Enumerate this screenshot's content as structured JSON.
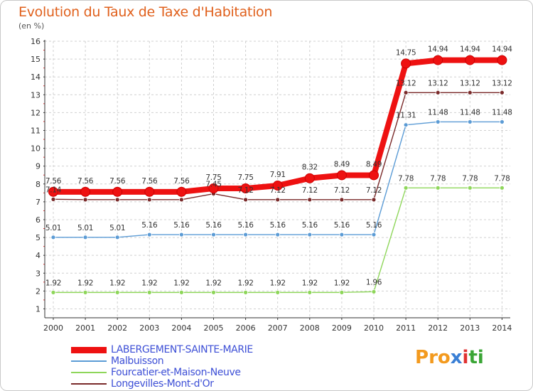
{
  "header": {
    "title": "Evolution du Taux de Taxe d'Habitation",
    "unit": "(en %)"
  },
  "logo": {
    "text": [
      "P",
      "r",
      "o",
      "x",
      "i",
      "t",
      "i"
    ],
    "colors": [
      "#f39a1e",
      "#f39a1e",
      "#f39a1e",
      "#3a7fd5",
      "#e03030",
      "#3aa535",
      "#3aa535"
    ]
  },
  "chart_data": {
    "type": "line",
    "title": "Evolution du Taux de Taxe d'Habitation",
    "ylabel": "(en %)",
    "xlabel": "",
    "x": [
      "2000",
      "2001",
      "2002",
      "2003",
      "2004",
      "2005",
      "2006",
      "2007",
      "2008",
      "2009",
      "2010",
      "2011",
      "2012",
      "2013",
      "2014"
    ],
    "ylim": [
      1,
      16
    ],
    "yticks": [
      1,
      2,
      3,
      4,
      5,
      6,
      7,
      8,
      9,
      10,
      11,
      12,
      13,
      14,
      15,
      16
    ],
    "grid": "horizontal dashed",
    "legend": "bottom-left",
    "series": [
      {
        "name": "LABERGEMENT-SAINTE-MARIE",
        "color": "#ee1111",
        "values": [
          7.56,
          7.56,
          7.56,
          7.56,
          7.56,
          7.75,
          7.75,
          7.91,
          8.32,
          8.49,
          8.49,
          14.75,
          14.94,
          14.94,
          14.94
        ],
        "labels": [
          "7.56",
          "7.56",
          "7.56",
          "7.56",
          "7.56",
          "7.75",
          "7.75",
          "7.91",
          "8.32",
          "8.49",
          "8.49",
          "14.75",
          "14.94",
          "14.94",
          "14.94"
        ]
      },
      {
        "name": "Malbuisson",
        "color": "#5b9bd5",
        "values": [
          5.01,
          5.01,
          5.01,
          5.16,
          5.16,
          5.16,
          5.16,
          5.16,
          5.16,
          5.16,
          5.16,
          11.31,
          11.48,
          11.48,
          11.48
        ],
        "labels": [
          "5.01",
          "5.01",
          "5.01",
          "5.16",
          "5.16",
          "5.16",
          "5.16",
          "5.16",
          "5.16",
          "5.16",
          "5.16",
          "11.31",
          "11.48",
          "11.48",
          "11.48"
        ]
      },
      {
        "name": "Fourcatier-et-Maison-Neuve",
        "color": "#8ed65a",
        "values": [
          1.92,
          1.92,
          1.92,
          1.92,
          1.92,
          1.92,
          1.92,
          1.92,
          1.92,
          1.92,
          1.96,
          7.78,
          7.78,
          7.78,
          7.78
        ],
        "labels": [
          "1.92",
          "1.92",
          "1.92",
          "1.92",
          "1.92",
          "1.92",
          "1.92",
          "1.92",
          "1.92",
          "1.92",
          "1.96",
          "7.78",
          "7.78",
          "7.78",
          "7.78"
        ]
      },
      {
        "name": "Longevilles-Mont-d'Or",
        "color": "#7a2a2a",
        "values": [
          7.14,
          7.12,
          7.12,
          7.12,
          7.12,
          7.45,
          7.12,
          7.12,
          7.12,
          7.12,
          7.12,
          13.12,
          13.12,
          13.12,
          13.12
        ],
        "labels": [
          "7.14",
          "",
          "",
          "",
          "",
          "7.45",
          "7.12",
          "7.12",
          "7.12",
          "7.12",
          "7.12",
          "13.12",
          "13.12",
          "13.12",
          "13.12"
        ]
      }
    ]
  }
}
